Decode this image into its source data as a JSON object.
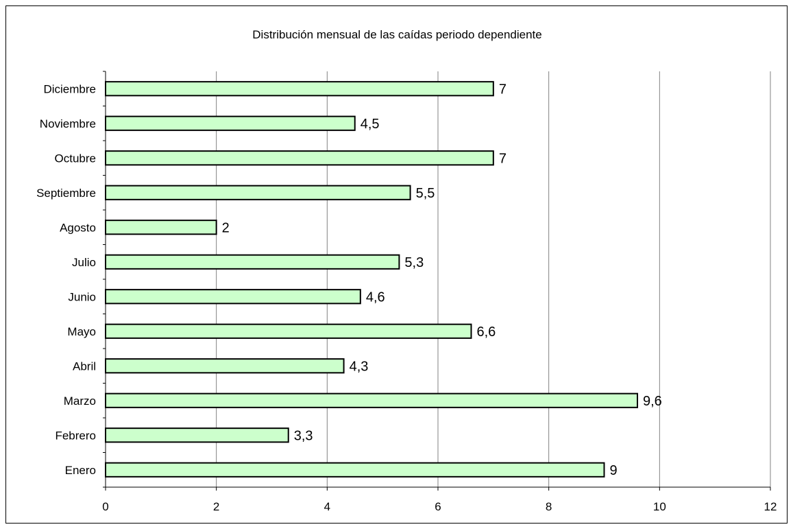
{
  "chart_data": {
    "type": "bar",
    "orientation": "horizontal",
    "title": "Distribución mensual de las caídas periodo dependiente",
    "xlabel": "",
    "ylabel": "",
    "categories": [
      "Enero",
      "Febrero",
      "Marzo",
      "Abril",
      "Mayo",
      "Junio",
      "Julio",
      "Agosto",
      "Septiembre",
      "Octubre",
      "Noviembre",
      "Diciembre"
    ],
    "values": [
      9,
      3.3,
      9.6,
      4.3,
      6.6,
      4.6,
      5.3,
      2,
      5.5,
      7,
      4.5,
      7
    ],
    "data_labels": [
      "9",
      "3,3",
      "9,6",
      "4,3",
      "6,6",
      "4,6",
      "5,3",
      "2",
      "5,5",
      "7",
      "4,5",
      "7"
    ],
    "xlim": [
      0,
      12
    ],
    "xticks": [
      "0",
      "2",
      "4",
      "6",
      "8",
      "10",
      "12"
    ],
    "grid": "vertical",
    "legend": "none",
    "colors": {
      "bar_fill": "#ccffcc",
      "bar_stroke": "#000000",
      "grid": "#808080"
    }
  }
}
